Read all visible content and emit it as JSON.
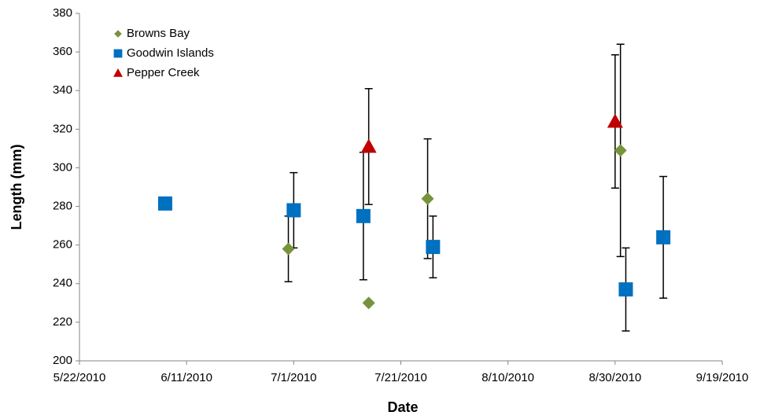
{
  "chart_data": {
    "type": "scatter",
    "x_label": "Date",
    "y_label": "Length (mm)",
    "xlim": [
      "2010-05-22",
      "2010-09-19"
    ],
    "xticks": [
      {
        "value": "2010-05-22",
        "label": "5/22/2010"
      },
      {
        "value": "2010-06-11",
        "label": "6/11/2010"
      },
      {
        "value": "2010-07-01",
        "label": "7/1/2010"
      },
      {
        "value": "2010-07-21",
        "label": "7/21/2010"
      },
      {
        "value": "2010-08-10",
        "label": "8/10/2010"
      },
      {
        "value": "2010-08-30",
        "label": "8/30/2010"
      },
      {
        "value": "2010-09-19",
        "label": "9/19/2010"
      }
    ],
    "ylim": [
      200,
      380
    ],
    "yticks": [
      200,
      220,
      240,
      260,
      280,
      300,
      320,
      340,
      360,
      380
    ],
    "legend": "upper-left",
    "series": [
      {
        "name": "Browns Bay",
        "color": "#77933c",
        "marker": "diamond",
        "x": [
          "2010-06-30",
          "2010-07-15",
          "2010-07-26",
          "2010-08-31"
        ],
        "values": [
          258,
          230,
          284,
          309
        ],
        "errors": [
          17,
          null,
          31,
          55
        ]
      },
      {
        "name": "Goodwin Islands",
        "color": "#0070c0",
        "marker": "square",
        "x": [
          "2010-06-07",
          "2010-07-01",
          "2010-07-14",
          "2010-07-27",
          "2010-09-01",
          "2010-09-08"
        ],
        "values": [
          281.5,
          278,
          275,
          259,
          237,
          264
        ],
        "errors": [
          null,
          19.5,
          33,
          16,
          21.5,
          31.5
        ]
      },
      {
        "name": "Pepper Creek",
        "color": "#c00000",
        "marker": "triangle",
        "x": [
          "2010-07-15",
          "2010-08-30"
        ],
        "values": [
          311,
          324
        ],
        "errors": [
          30,
          34.5
        ]
      }
    ]
  }
}
